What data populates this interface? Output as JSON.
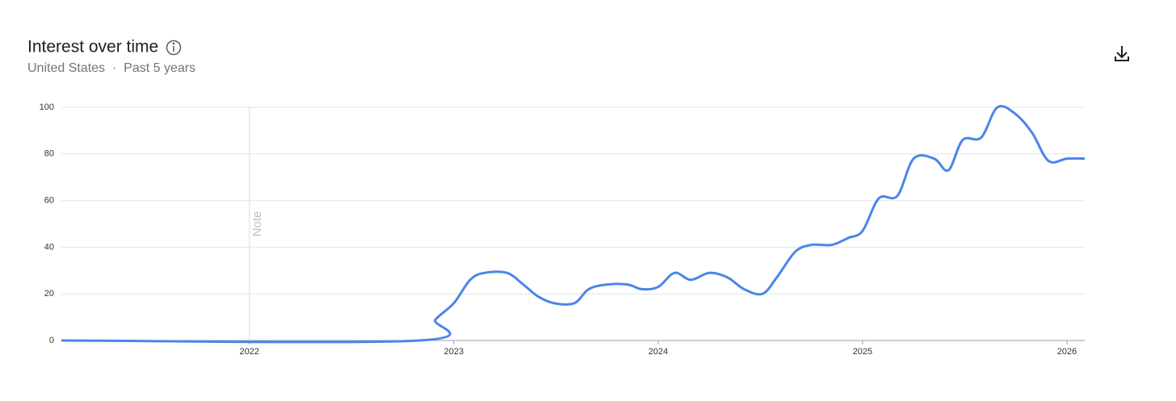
{
  "chart_data": {
    "type": "line",
    "title": "Interest over time",
    "subtitle": "United States  ·  Past 5 years",
    "annotation": {
      "x": 2022,
      "label": "Note"
    },
    "x": [
      2021.08,
      2022.83,
      2022.91,
      2023.0,
      2023.08,
      2023.15,
      2023.26,
      2023.34,
      2023.41,
      2023.49,
      2023.59,
      2023.66,
      2023.75,
      2023.85,
      2023.92,
      2024.0,
      2024.08,
      2024.16,
      2024.25,
      2024.34,
      2024.42,
      2024.51,
      2024.58,
      2024.67,
      2024.75,
      2024.85,
      2024.93,
      2025.0,
      2025.08,
      2025.17,
      2025.25,
      2025.35,
      2025.42,
      2025.49,
      2025.58,
      2025.66,
      2025.75,
      2025.83,
      2025.91,
      2026.0,
      2026.087
    ],
    "series": [
      {
        "color": "#4a86e8",
        "values": [
          0,
          0,
          9,
          16,
          26,
          29,
          29,
          24,
          19,
          16,
          16,
          22,
          24,
          24,
          22,
          23,
          29,
          26,
          29,
          27,
          22,
          20,
          27,
          38,
          41,
          41,
          44,
          47,
          61,
          62,
          78,
          78,
          73,
          86,
          87,
          100,
          97,
          89,
          77,
          78,
          78
        ]
      }
    ],
    "xlim": [
      2021.08,
      2026.087
    ],
    "xticks": [
      2022,
      2023,
      2024,
      2025,
      2026
    ],
    "ylim": [
      0,
      100
    ],
    "yticks": [
      0,
      20,
      40,
      60,
      80,
      100
    ],
    "grid": true
  }
}
